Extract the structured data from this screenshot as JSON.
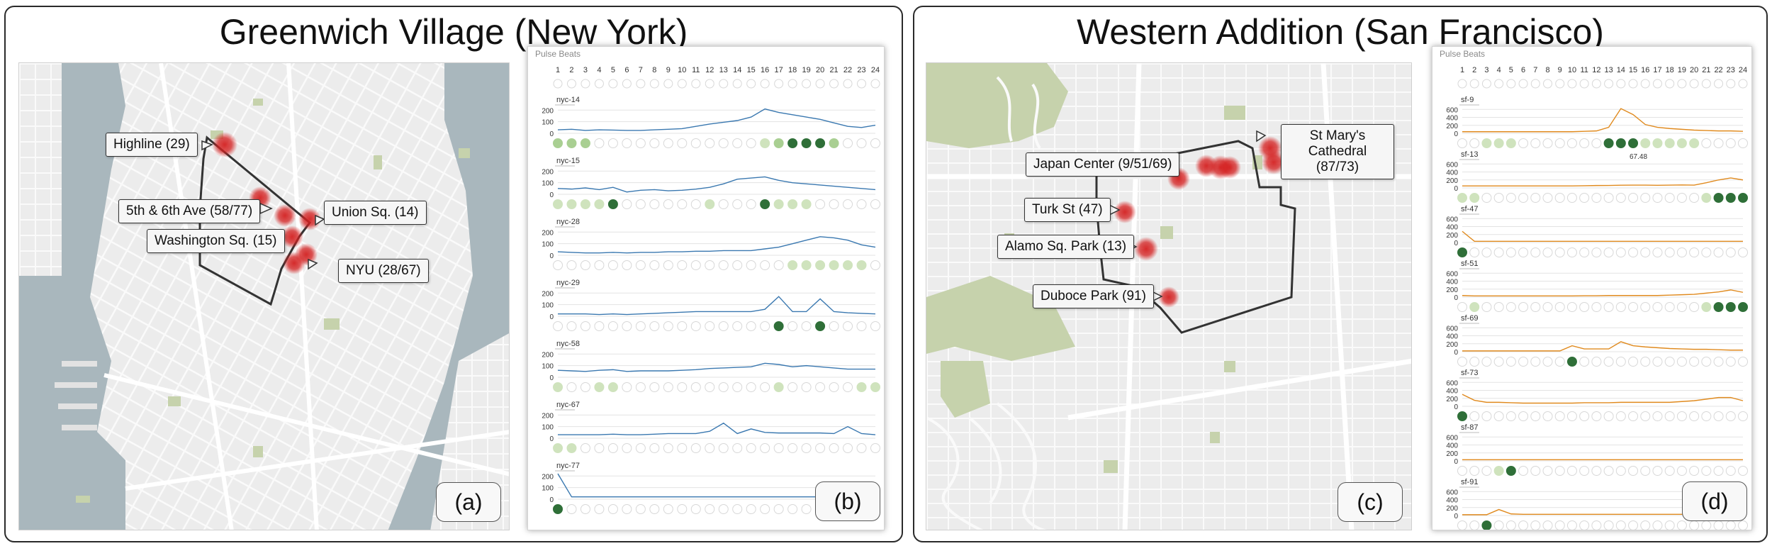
{
  "panels": {
    "left": {
      "title": "Greenwich Village (New York)"
    },
    "right": {
      "title": "Western Addition (San Francisco)"
    }
  },
  "tags": {
    "a": "(a)",
    "b": "(b)",
    "c": "(c)",
    "d": "(d)"
  },
  "nyc_callouts": [
    "Highline (29)",
    "5th & 6th Ave (58/77)",
    "Union Sq. (14)",
    "Washington Sq. (15)",
    "NYU (28/67)"
  ],
  "sf_callouts": [
    "Japan Center (9/51/69)",
    "St Mary's Cathedral (87/73)",
    "Turk St (47)",
    "Alamo Sq. Park (13)",
    "Duboce Park (91)"
  ],
  "colors": {
    "water": "#a9b7bd",
    "land": "#eaeaea",
    "park": "#c6d2ac",
    "hotspot": "#d42020",
    "nyc_line": "#3a78b0",
    "sf_line": "#e08a1e",
    "light_green": "#cfe3bd",
    "dark_green": "#2f6f38"
  },
  "chart_data": [
    {
      "type": "line",
      "title": "Pulse Beats",
      "x": [
        1,
        2,
        3,
        4,
        5,
        6,
        7,
        8,
        9,
        10,
        11,
        12,
        13,
        14,
        15,
        16,
        17,
        18,
        19,
        20,
        21,
        22,
        23,
        24
      ],
      "yticks": [
        0,
        100,
        200
      ],
      "series": [
        {
          "name": "nyc-14",
          "values": [
            30,
            35,
            25,
            30,
            28,
            25,
            25,
            30,
            35,
            40,
            60,
            80,
            95,
            110,
            140,
            210,
            180,
            160,
            140,
            120,
            90,
            60,
            50,
            70
          ],
          "circles": [
            2,
            2,
            2,
            0,
            0,
            0,
            0,
            0,
            0,
            0,
            0,
            0,
            0,
            0,
            0,
            1,
            2,
            3,
            3,
            3,
            2,
            0,
            0,
            0
          ]
        },
        {
          "name": "nyc-15",
          "values": [
            50,
            45,
            55,
            40,
            60,
            20,
            35,
            40,
            30,
            35,
            45,
            60,
            90,
            130,
            140,
            150,
            120,
            100,
            90,
            80,
            70,
            60,
            50,
            40
          ],
          "circles": [
            1,
            1,
            1,
            1,
            3,
            0,
            0,
            0,
            0,
            0,
            0,
            1,
            0,
            0,
            0,
            3,
            1,
            1,
            1,
            0,
            0,
            0,
            0,
            0
          ]
        },
        {
          "name": "nyc-28",
          "values": [
            30,
            25,
            20,
            20,
            25,
            20,
            25,
            25,
            30,
            30,
            35,
            35,
            40,
            40,
            40,
            55,
            70,
            100,
            130,
            160,
            150,
            130,
            90,
            70
          ],
          "circles": [
            0,
            0,
            0,
            0,
            0,
            0,
            0,
            0,
            0,
            0,
            0,
            0,
            0,
            0,
            0,
            0,
            0,
            1,
            1,
            1,
            1,
            1,
            1,
            0
          ]
        },
        {
          "name": "nyc-29",
          "values": [
            20,
            20,
            20,
            15,
            20,
            15,
            20,
            25,
            30,
            35,
            40,
            40,
            40,
            40,
            40,
            60,
            170,
            40,
            40,
            150,
            40,
            30,
            25,
            20
          ],
          "circles": [
            0,
            0,
            0,
            0,
            0,
            0,
            0,
            0,
            0,
            0,
            0,
            0,
            0,
            0,
            0,
            0,
            3,
            0,
            0,
            3,
            0,
            0,
            0,
            0
          ]
        },
        {
          "name": "nyc-58",
          "values": [
            60,
            55,
            50,
            60,
            65,
            50,
            55,
            55,
            55,
            60,
            65,
            75,
            80,
            85,
            90,
            120,
            110,
            90,
            100,
            90,
            80,
            70,
            70,
            70
          ],
          "circles": [
            1,
            0,
            0,
            1,
            1,
            0,
            0,
            0,
            0,
            0,
            0,
            0,
            0,
            0,
            0,
            0,
            1,
            0,
            0,
            0,
            0,
            0,
            1,
            1
          ]
        },
        {
          "name": "nyc-67",
          "values": [
            30,
            30,
            30,
            30,
            35,
            30,
            30,
            35,
            40,
            40,
            40,
            60,
            130,
            40,
            80,
            50,
            45,
            45,
            45,
            45,
            40,
            100,
            40,
            30
          ],
          "circles": [
            1,
            1,
            0,
            0,
            0,
            0,
            0,
            0,
            0,
            0,
            0,
            0,
            0,
            0,
            0,
            0,
            0,
            0,
            0,
            0,
            0,
            0,
            0,
            0
          ]
        },
        {
          "name": "nyc-77",
          "values": [
            220,
            20,
            20,
            20,
            20,
            20,
            20,
            20,
            20,
            20,
            20,
            20,
            20,
            20,
            20,
            20,
            20,
            20,
            20,
            20,
            20,
            20,
            20,
            20
          ],
          "circles": [
            3,
            0,
            0,
            0,
            0,
            0,
            0,
            0,
            0,
            0,
            0,
            0,
            0,
            0,
            0,
            0,
            0,
            0,
            0,
            0,
            0,
            0,
            0,
            0
          ]
        }
      ]
    },
    {
      "type": "line",
      "title": "Pulse Beats",
      "x": [
        1,
        2,
        3,
        4,
        5,
        6,
        7,
        8,
        9,
        10,
        11,
        12,
        13,
        14,
        15,
        16,
        17,
        18,
        19,
        20,
        21,
        22,
        23,
        24
      ],
      "yticks": [
        0,
        200,
        400,
        600
      ],
      "annotation": "67.48",
      "series": [
        {
          "name": "sf-9",
          "values": [
            40,
            40,
            40,
            40,
            40,
            40,
            40,
            40,
            40,
            40,
            50,
            60,
            150,
            620,
            470,
            220,
            150,
            120,
            100,
            80,
            70,
            60,
            60,
            50
          ],
          "circles": [
            0,
            0,
            1,
            1,
            1,
            0,
            0,
            0,
            0,
            0,
            0,
            0,
            3,
            3,
            3,
            1,
            1,
            1,
            1,
            1,
            0,
            0,
            0,
            0
          ]
        },
        {
          "name": "sf-13",
          "values": [
            50,
            50,
            50,
            50,
            50,
            50,
            50,
            50,
            50,
            50,
            55,
            60,
            62,
            67,
            70,
            70,
            65,
            70,
            75,
            70,
            130,
            200,
            250,
            200
          ],
          "circles": [
            1,
            1,
            0,
            0,
            0,
            0,
            0,
            0,
            0,
            0,
            0,
            0,
            0,
            0,
            0,
            0,
            0,
            0,
            0,
            0,
            1,
            3,
            3,
            3
          ]
        },
        {
          "name": "sf-47",
          "values": [
            280,
            30,
            30,
            30,
            30,
            30,
            30,
            30,
            30,
            30,
            30,
            30,
            30,
            30,
            30,
            30,
            30,
            30,
            30,
            30,
            30,
            30,
            30,
            30
          ],
          "circles": [
            3,
            0,
            0,
            0,
            0,
            0,
            0,
            0,
            0,
            0,
            0,
            0,
            0,
            0,
            0,
            0,
            0,
            0,
            0,
            0,
            0,
            0,
            0,
            0
          ]
        },
        {
          "name": "sf-51",
          "values": [
            40,
            30,
            30,
            30,
            30,
            30,
            30,
            30,
            30,
            30,
            35,
            35,
            40,
            40,
            40,
            40,
            40,
            50,
            60,
            70,
            100,
            130,
            180,
            120
          ],
          "circles": [
            0,
            1,
            0,
            0,
            0,
            0,
            0,
            0,
            0,
            0,
            0,
            0,
            0,
            0,
            0,
            0,
            0,
            0,
            0,
            0,
            1,
            3,
            3,
            3
          ]
        },
        {
          "name": "sf-69",
          "values": [
            20,
            20,
            20,
            20,
            20,
            20,
            20,
            20,
            20,
            150,
            70,
            70,
            70,
            250,
            150,
            120,
            100,
            80,
            70,
            60,
            60,
            50,
            40,
            40
          ],
          "circles": [
            0,
            0,
            0,
            0,
            0,
            0,
            0,
            0,
            0,
            3,
            0,
            0,
            0,
            0,
            0,
            0,
            0,
            0,
            0,
            0,
            0,
            0,
            0,
            0
          ]
        },
        {
          "name": "sf-73",
          "values": [
            300,
            150,
            100,
            100,
            90,
            80,
            80,
            80,
            80,
            80,
            90,
            90,
            90,
            100,
            100,
            100,
            100,
            100,
            120,
            140,
            180,
            220,
            220,
            140
          ],
          "circles": [
            3,
            0,
            0,
            0,
            0,
            0,
            0,
            0,
            0,
            0,
            0,
            0,
            0,
            0,
            0,
            0,
            0,
            0,
            0,
            0,
            0,
            0,
            0,
            0
          ]
        },
        {
          "name": "sf-87",
          "values": [
            30,
            30,
            30,
            30,
            30,
            30,
            30,
            30,
            30,
            30,
            30,
            30,
            30,
            30,
            30,
            30,
            30,
            30,
            30,
            30,
            30,
            30,
            30,
            30
          ],
          "circles": [
            0,
            0,
            0,
            1,
            3,
            0,
            0,
            0,
            0,
            0,
            0,
            0,
            0,
            0,
            0,
            0,
            0,
            0,
            0,
            0,
            0,
            0,
            0,
            0
          ]
        },
        {
          "name": "sf-91",
          "values": [
            20,
            20,
            20,
            150,
            40,
            30,
            30,
            30,
            30,
            30,
            30,
            30,
            30,
            30,
            30,
            30,
            30,
            30,
            30,
            30,
            30,
            30,
            30,
            30
          ],
          "circles": [
            0,
            0,
            3,
            0,
            0,
            0,
            0,
            0,
            0,
            0,
            0,
            0,
            0,
            0,
            0,
            0,
            0,
            0,
            0,
            0,
            0,
            0,
            0,
            0
          ]
        }
      ]
    }
  ]
}
